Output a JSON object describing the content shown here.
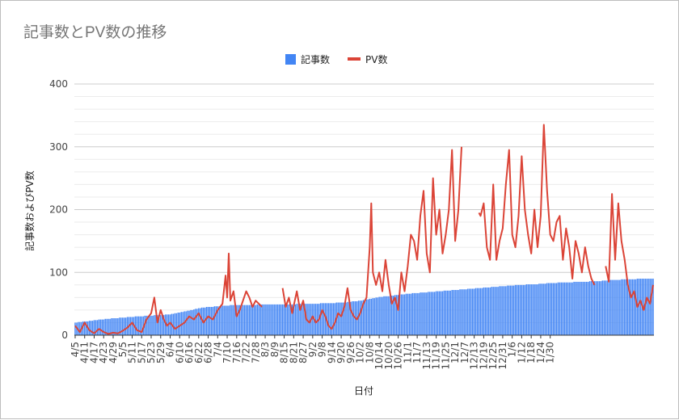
{
  "chart_data": {
    "type": "bar+line",
    "title": "記事数とPV数の推移",
    "xlabel": "日付",
    "ylabel": "記事数およびPV数",
    "ylim": [
      0,
      400
    ],
    "y_ticks": [
      0,
      100,
      200,
      300,
      400
    ],
    "legend_position": "top-center",
    "legend": [
      {
        "name": "記事数",
        "color": "#4285f4",
        "kind": "bar"
      },
      {
        "name": "PV数",
        "color": "#db4437",
        "kind": "line"
      }
    ],
    "x_start_label": "4/5",
    "x_tick_labels": [
      "4/5",
      "4/11",
      "4/17",
      "4/23",
      "4/29",
      "5/5",
      "5/11",
      "5/17",
      "5/23",
      "5/29",
      "6/4",
      "6/10",
      "6/16",
      "6/22",
      "6/28",
      "7/4",
      "7/10",
      "7/16",
      "7/22",
      "7/28",
      "8/3",
      "8/9",
      "8/15",
      "8/21",
      "8/27",
      "9/2",
      "9/8",
      "9/14",
      "9/20",
      "9/26",
      "10/2",
      "10/8",
      "10/14",
      "10/20",
      "10/26",
      "11/1",
      "11/7",
      "11/13",
      "11/19",
      "11/25",
      "12/1",
      "12/7",
      "12/13",
      "12/19",
      "12/25",
      "12/31",
      "1/6",
      "1/12",
      "1/18",
      "1/24",
      "1/30"
    ],
    "series": [
      {
        "name": "記事数",
        "type": "bar",
        "color": "#4285f4",
        "keypoints": [
          [
            0,
            20
          ],
          [
            10,
            23
          ],
          [
            20,
            26
          ],
          [
            30,
            28
          ],
          [
            40,
            30
          ],
          [
            60,
            33
          ],
          [
            70,
            38
          ],
          [
            80,
            44
          ],
          [
            95,
            47
          ],
          [
            100,
            48
          ],
          [
            130,
            49
          ],
          [
            150,
            50
          ],
          [
            170,
            52
          ],
          [
            180,
            55
          ],
          [
            185,
            57
          ],
          [
            190,
            60
          ],
          [
            200,
            63
          ],
          [
            210,
            66
          ],
          [
            220,
            68
          ],
          [
            230,
            70
          ],
          [
            240,
            72
          ],
          [
            250,
            74
          ],
          [
            260,
            76
          ],
          [
            270,
            78
          ],
          [
            280,
            80
          ],
          [
            290,
            81
          ],
          [
            300,
            83
          ],
          [
            310,
            84
          ],
          [
            320,
            85
          ],
          [
            330,
            86
          ],
          [
            340,
            88
          ],
          [
            350,
            89
          ],
          [
            360,
            90
          ],
          [
            365,
            90
          ]
        ]
      },
      {
        "name": "PV数",
        "type": "line",
        "color": "#db4437",
        "keypoints": [
          [
            0,
            15
          ],
          [
            3,
            5
          ],
          [
            6,
            20
          ],
          [
            9,
            8
          ],
          [
            12,
            3
          ],
          [
            15,
            10
          ],
          [
            18,
            5
          ],
          [
            21,
            2
          ],
          [
            24,
            4
          ],
          [
            27,
            3
          ],
          [
            30,
            7
          ],
          [
            33,
            12
          ],
          [
            36,
            20
          ],
          [
            39,
            8
          ],
          [
            42,
            5
          ],
          [
            45,
            25
          ],
          [
            48,
            35
          ],
          [
            50,
            60
          ],
          [
            52,
            20
          ],
          [
            54,
            40
          ],
          [
            56,
            25
          ],
          [
            58,
            15
          ],
          [
            60,
            20
          ],
          [
            63,
            10
          ],
          [
            66,
            15
          ],
          [
            69,
            20
          ],
          [
            72,
            30
          ],
          [
            75,
            25
          ],
          [
            78,
            35
          ],
          [
            81,
            20
          ],
          [
            84,
            30
          ],
          [
            87,
            25
          ],
          [
            90,
            40
          ],
          [
            93,
            50
          ],
          [
            95,
            95
          ],
          [
            96,
            60
          ],
          [
            97,
            130
          ],
          [
            98,
            55
          ],
          [
            100,
            70
          ],
          [
            102,
            30
          ],
          [
            104,
            40
          ],
          [
            106,
            55
          ],
          [
            108,
            70
          ],
          [
            110,
            60
          ],
          [
            112,
            45
          ],
          [
            114,
            55
          ],
          [
            116,
            50
          ],
          [
            118,
            45
          ],
          [
            120,
            null
          ],
          [
            130,
            null
          ],
          [
            131,
            75
          ],
          [
            133,
            45
          ],
          [
            135,
            60
          ],
          [
            137,
            35
          ],
          [
            140,
            70
          ],
          [
            142,
            40
          ],
          [
            144,
            55
          ],
          [
            146,
            25
          ],
          [
            148,
            20
          ],
          [
            150,
            30
          ],
          [
            152,
            20
          ],
          [
            154,
            25
          ],
          [
            156,
            40
          ],
          [
            158,
            30
          ],
          [
            160,
            15
          ],
          [
            162,
            10
          ],
          [
            164,
            20
          ],
          [
            166,
            35
          ],
          [
            168,
            30
          ],
          [
            170,
            45
          ],
          [
            172,
            75
          ],
          [
            174,
            40
          ],
          [
            176,
            30
          ],
          [
            178,
            25
          ],
          [
            180,
            35
          ],
          [
            182,
            50
          ],
          [
            184,
            60
          ],
          [
            186,
            140
          ],
          [
            187,
            210
          ],
          [
            188,
            100
          ],
          [
            190,
            80
          ],
          [
            192,
            100
          ],
          [
            194,
            70
          ],
          [
            196,
            120
          ],
          [
            198,
            80
          ],
          [
            200,
            50
          ],
          [
            202,
            60
          ],
          [
            204,
            40
          ],
          [
            206,
            100
          ],
          [
            208,
            70
          ],
          [
            210,
            110
          ],
          [
            212,
            160
          ],
          [
            214,
            150
          ],
          [
            216,
            120
          ],
          [
            218,
            190
          ],
          [
            220,
            230
          ],
          [
            222,
            130
          ],
          [
            224,
            100
          ],
          [
            226,
            250
          ],
          [
            228,
            160
          ],
          [
            230,
            200
          ],
          [
            232,
            130
          ],
          [
            234,
            160
          ],
          [
            236,
            200
          ],
          [
            238,
            295
          ],
          [
            240,
            150
          ],
          [
            242,
            200
          ],
          [
            244,
            300
          ],
          [
            245,
            null
          ],
          [
            254,
            null
          ],
          [
            255,
            195
          ],
          [
            256,
            190
          ],
          [
            258,
            210
          ],
          [
            260,
            140
          ],
          [
            262,
            120
          ],
          [
            264,
            240
          ],
          [
            266,
            120
          ],
          [
            268,
            150
          ],
          [
            270,
            170
          ],
          [
            272,
            240
          ],
          [
            274,
            295
          ],
          [
            276,
            160
          ],
          [
            278,
            140
          ],
          [
            280,
            190
          ],
          [
            282,
            285
          ],
          [
            284,
            200
          ],
          [
            286,
            160
          ],
          [
            288,
            130
          ],
          [
            290,
            200
          ],
          [
            292,
            140
          ],
          [
            294,
            190
          ],
          [
            296,
            335
          ],
          [
            298,
            230
          ],
          [
            300,
            160
          ],
          [
            302,
            150
          ],
          [
            304,
            180
          ],
          [
            306,
            190
          ],
          [
            308,
            120
          ],
          [
            310,
            170
          ],
          [
            312,
            140
          ],
          [
            314,
            90
          ],
          [
            316,
            150
          ],
          [
            318,
            130
          ],
          [
            320,
            100
          ],
          [
            322,
            140
          ],
          [
            324,
            110
          ],
          [
            326,
            90
          ],
          [
            328,
            80
          ],
          [
            330,
            null
          ],
          [
            334,
            null
          ],
          [
            335,
            110
          ],
          [
            337,
            85
          ],
          [
            339,
            225
          ],
          [
            341,
            120
          ],
          [
            343,
            210
          ],
          [
            345,
            150
          ],
          [
            347,
            120
          ],
          [
            349,
            80
          ],
          [
            351,
            60
          ],
          [
            353,
            70
          ],
          [
            355,
            45
          ],
          [
            357,
            55
          ],
          [
            359,
            40
          ],
          [
            361,
            60
          ],
          [
            363,
            50
          ],
          [
            365,
            80
          ]
        ]
      }
    ]
  }
}
